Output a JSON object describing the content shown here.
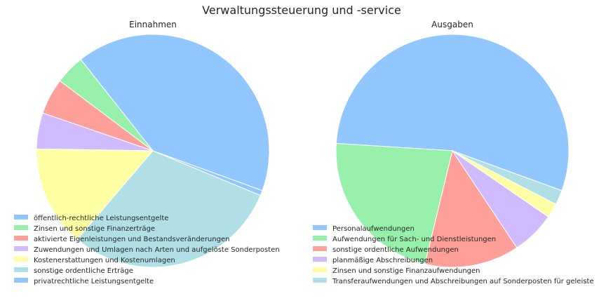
{
  "title": "Verwaltungssteuerung und -service",
  "chart_data": [
    {
      "type": "pie",
      "title": "Einnahmen",
      "start_angle_deg": -20,
      "slices": [
        {
          "label": "öffentlich-rechtliche Leistungsentgelte",
          "value": 41.2,
          "color": "#92c6ff"
        },
        {
          "label": "Zinsen und sonstige Finanzerträge",
          "value": 4.1,
          "color": "#97f0aa"
        },
        {
          "label": "aktivierte Eigenleistungen und Bestandsveränderungen",
          "value": 5.0,
          "color": "#ff9f9a"
        },
        {
          "label": "Zuwendungen und Umlagen nach Arten und aufgelöste Sonderposten",
          "value": 5.0,
          "color": "#d0bbff"
        },
        {
          "label": "Kostenerstattungen und Kostenumlagen",
          "value": 14.0,
          "color": "#fffea3"
        },
        {
          "label": "sonstige ordentliche Erträge",
          "value": 30.0,
          "color": "#b0e0e6"
        },
        {
          "label": "privatrechtliche Leistungsentgelte",
          "value": 0.7,
          "color": "#92c6ff"
        }
      ],
      "legend_position": "lower-left"
    },
    {
      "type": "pie",
      "title": "Ausgaben",
      "start_angle_deg": -20,
      "slices": [
        {
          "label": "Personalaufwendungen",
          "value": 54.0,
          "color": "#92c6ff"
        },
        {
          "label": "Aufwendungen für Sach- und Dienstleistungen",
          "value": 22.0,
          "color": "#97f0aa"
        },
        {
          "label": "sonstige ordentliche Aufwendungen",
          "value": 13.0,
          "color": "#ff9f9a"
        },
        {
          "label": "planmäßige Abschreibungen",
          "value": 6.0,
          "color": "#d0bbff"
        },
        {
          "label": "Zinsen und sonstige Finanzaufwendungen",
          "value": 2.0,
          "color": "#fffea3"
        },
        {
          "label": "Transferaufwendungen und Abschreibungen auf Sonderposten für geleiste",
          "value": 2.0,
          "color": "#b0e0e6"
        }
      ],
      "legend_position": "lower-left"
    }
  ]
}
